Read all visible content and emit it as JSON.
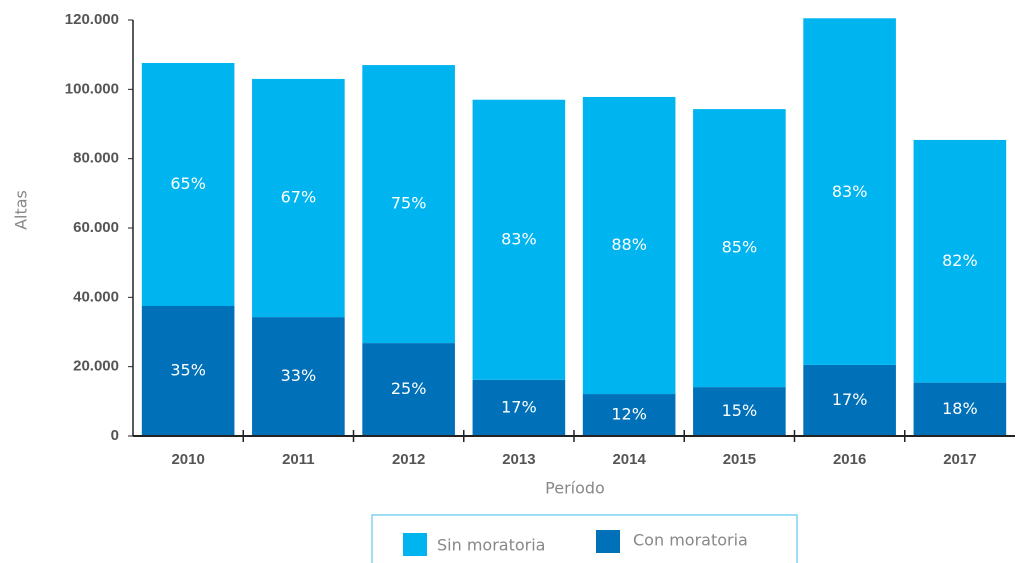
{
  "chart_data": {
    "type": "stacked_bar",
    "x_label": "Período",
    "y_label": "Altas",
    "categories": [
      "2010",
      "2011",
      "2012",
      "2013",
      "2014",
      "2015",
      "2016",
      "2017"
    ],
    "series": [
      {
        "name": "Con moratoria",
        "color": "#0070b8",
        "values": [
          37500,
          34300,
          26800,
          16200,
          12100,
          14100,
          20500,
          15400
        ],
        "value_labels": [
          "35%",
          "33%",
          "25%",
          "17%",
          "12%",
          "15%",
          "17%",
          "18%"
        ]
      },
      {
        "name": "Sin moratoria",
        "color": "#00b5ef",
        "values": [
          70100,
          68700,
          80200,
          80800,
          85700,
          80200,
          100000,
          70000
        ],
        "value_labels": [
          "65%",
          "67%",
          "75%",
          "83%",
          "88%",
          "85%",
          "83%",
          "82%"
        ]
      }
    ],
    "ylim": [
      0,
      120000
    ],
    "yticks": [
      0,
      {
        "value": 20000,
        "label": "20.000"
      },
      {
        "value": 40000,
        "label": "40.000"
      },
      {
        "value": 60000,
        "label": "60.000"
      },
      {
        "value": 80000,
        "label": "80.000"
      },
      {
        "value": 100000,
        "label": "100.000"
      },
      {
        "value": 120000,
        "label": "120.000"
      }
    ],
    "grid": false
  }
}
